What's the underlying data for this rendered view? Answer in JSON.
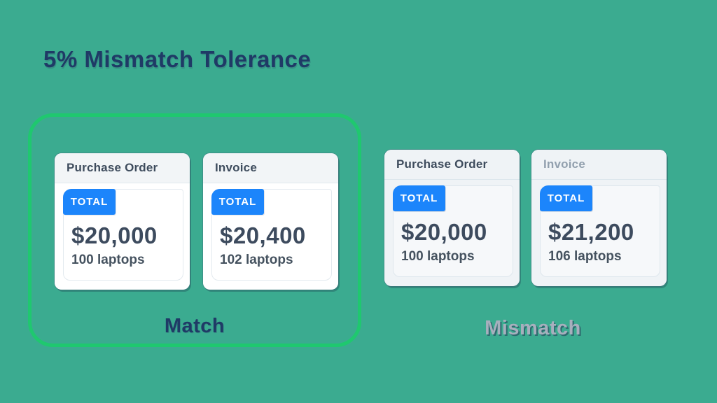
{
  "title": "5% Mismatch Tolerance",
  "colors": {
    "background": "#3BAB90",
    "match_outline_green": "#1FC86F",
    "badge_blue": "#1C85FB",
    "heading_navy": "#1F3A66",
    "card_text_slate": "#3D4B5E",
    "muted_gray": "#92A0AE"
  },
  "groups": [
    {
      "label": "Match",
      "highlighted": true,
      "cards": [
        {
          "header": "Purchase Order",
          "badge": "TOTAL",
          "amount": "$20,000",
          "quantity": "100 laptops"
        },
        {
          "header": "Invoice",
          "badge": "TOTAL",
          "amount": "$20,400",
          "quantity": "102 laptops"
        }
      ]
    },
    {
      "label": "Mismatch",
      "highlighted": false,
      "cards": [
        {
          "header": "Purchase Order",
          "badge": "TOTAL",
          "amount": "$20,000",
          "quantity": "100 laptops"
        },
        {
          "header": "Invoice",
          "badge": "TOTAL",
          "amount": "$21,200",
          "quantity": "106 laptops"
        }
      ]
    }
  ]
}
